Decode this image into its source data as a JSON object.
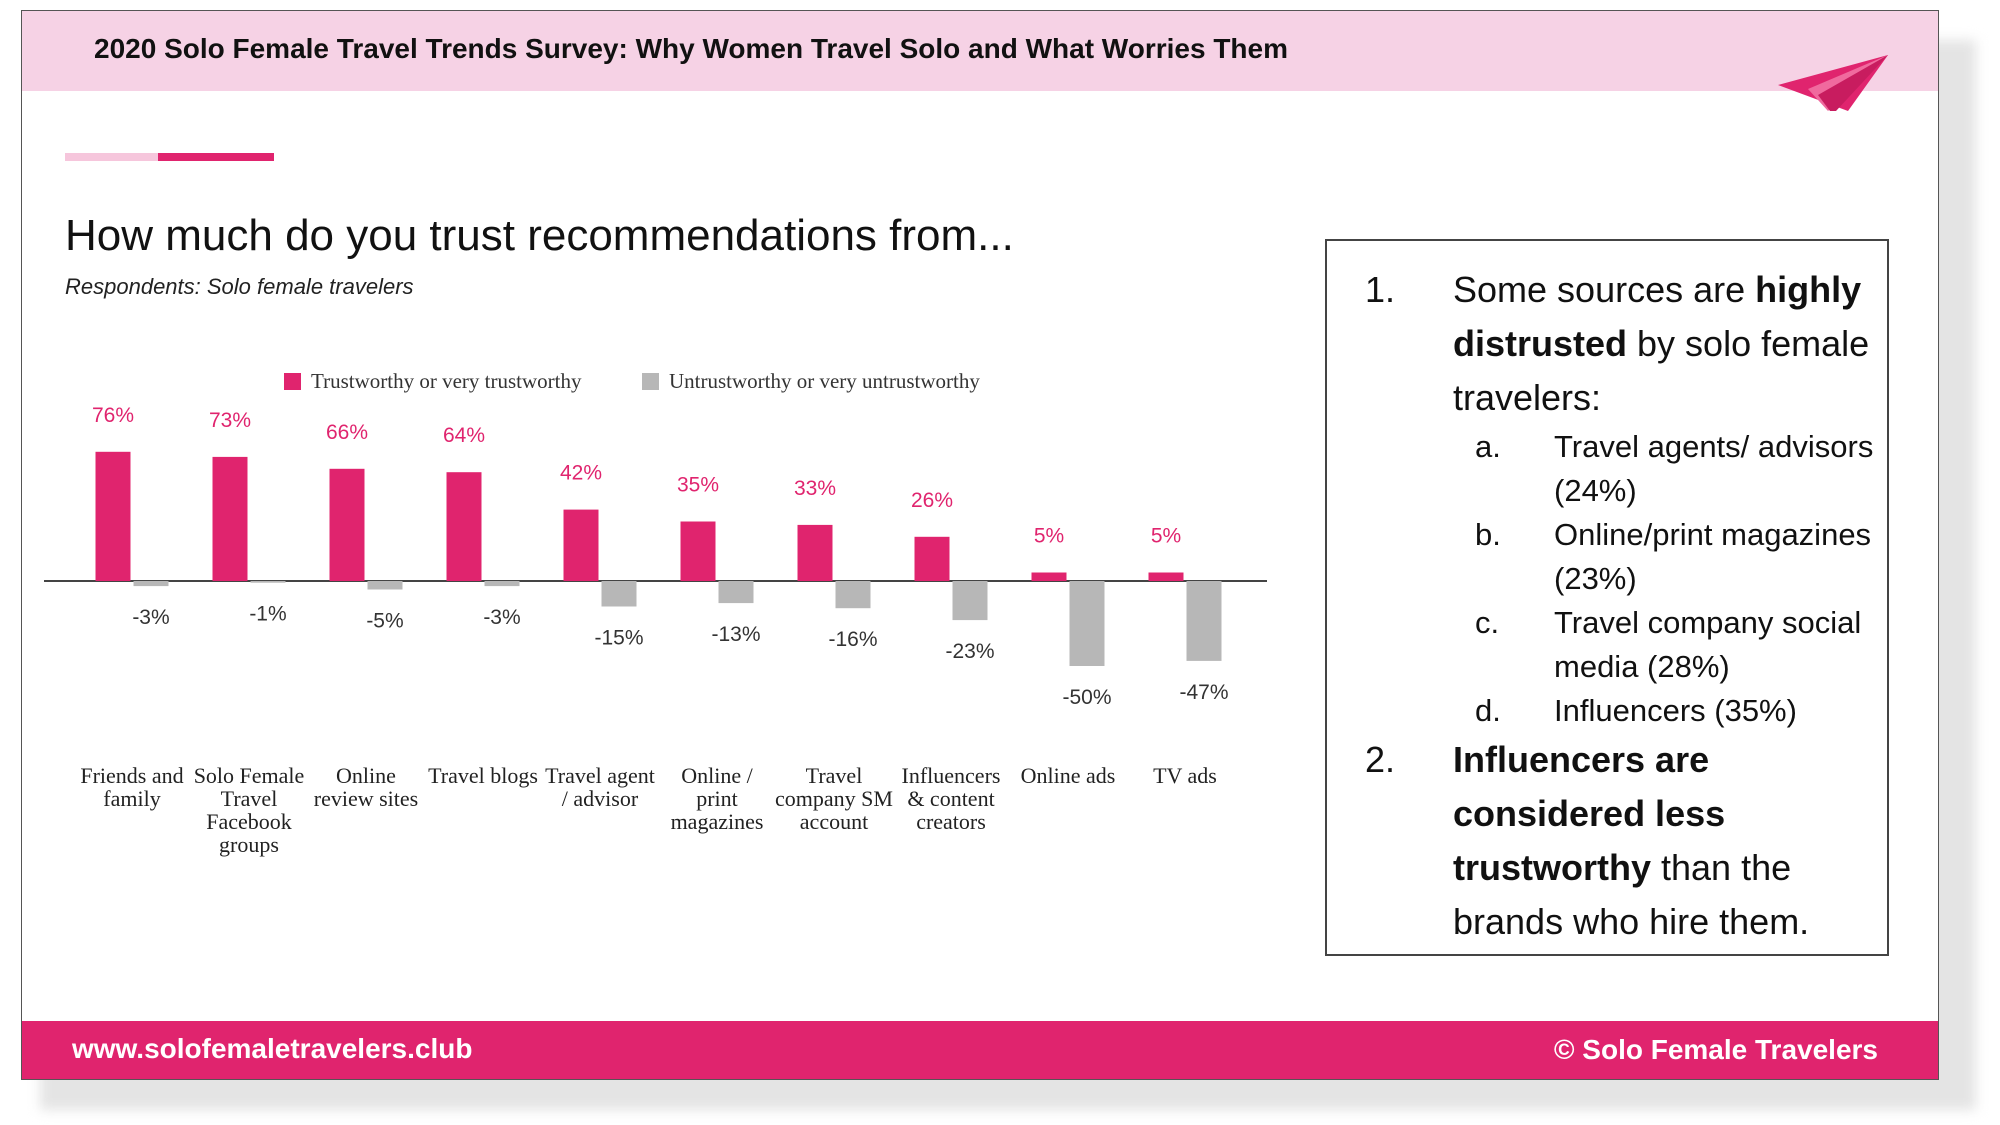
{
  "header": {
    "title": "2020 Solo Female Travel Trends Survey: Why Women Travel Solo and What Worries Them"
  },
  "chart_data": {
    "type": "bar",
    "title": "How much do you trust recommendations from...",
    "subtitle": "Respondents: Solo female travelers",
    "categories": [
      "Friends and family",
      "Solo Female Travel Facebook groups",
      "Online review sites",
      "Travel blogs",
      "Travel agent / advisor",
      "Online / print magazines",
      "Travel company SM account",
      "Influencers & content creators",
      "Online ads",
      "TV ads"
    ],
    "series": [
      {
        "name": "Trustworthy or very trustworthy",
        "color": "#e0246e",
        "label_color": "#e0246e",
        "values": [
          76,
          73,
          66,
          64,
          42,
          35,
          33,
          26,
          5,
          5
        ],
        "value_labels": [
          "76%",
          "73%",
          "66%",
          "64%",
          "42%",
          "35%",
          "33%",
          "26%",
          "5%",
          "5%"
        ]
      },
      {
        "name": "Untrustworthy or very untrustworthy",
        "color": "#b7b7b7",
        "label_color": "#333333",
        "values": [
          -3,
          -1,
          -5,
          -3,
          -15,
          -13,
          -16,
          -23,
          -50,
          -47
        ],
        "value_labels": [
          "-3%",
          "-1%",
          "-5%",
          "-3%",
          "-15%",
          "-13%",
          "-16%",
          "-23%",
          "-50%",
          "-47%"
        ]
      }
    ],
    "legend": "top"
  },
  "notes": {
    "items": [
      {
        "marker": "1.",
        "parts": [
          {
            "text": "Some sources are "
          },
          {
            "text": "highly distrusted",
            "bold": true
          },
          {
            "text": " by solo female travelers:"
          }
        ],
        "subitems": [
          {
            "marker": "a.",
            "text": "Travel agents/ advisors (24%)"
          },
          {
            "marker": "b.",
            "text": "Online/print magazines (23%)"
          },
          {
            "marker": "c.",
            "text": "Travel company social media (28%)"
          },
          {
            "marker": "d.",
            "text": "Influencers (35%)"
          }
        ]
      },
      {
        "marker": "2.",
        "parts": [
          {
            "text": "Influencers are considered less trustworthy",
            "bold": true
          },
          {
            "text": " than the brands who hire them."
          }
        ],
        "subitems": []
      }
    ]
  },
  "footer": {
    "site": "www.solofemaletravelers.club",
    "copyright": "© Solo Female Travelers"
  }
}
